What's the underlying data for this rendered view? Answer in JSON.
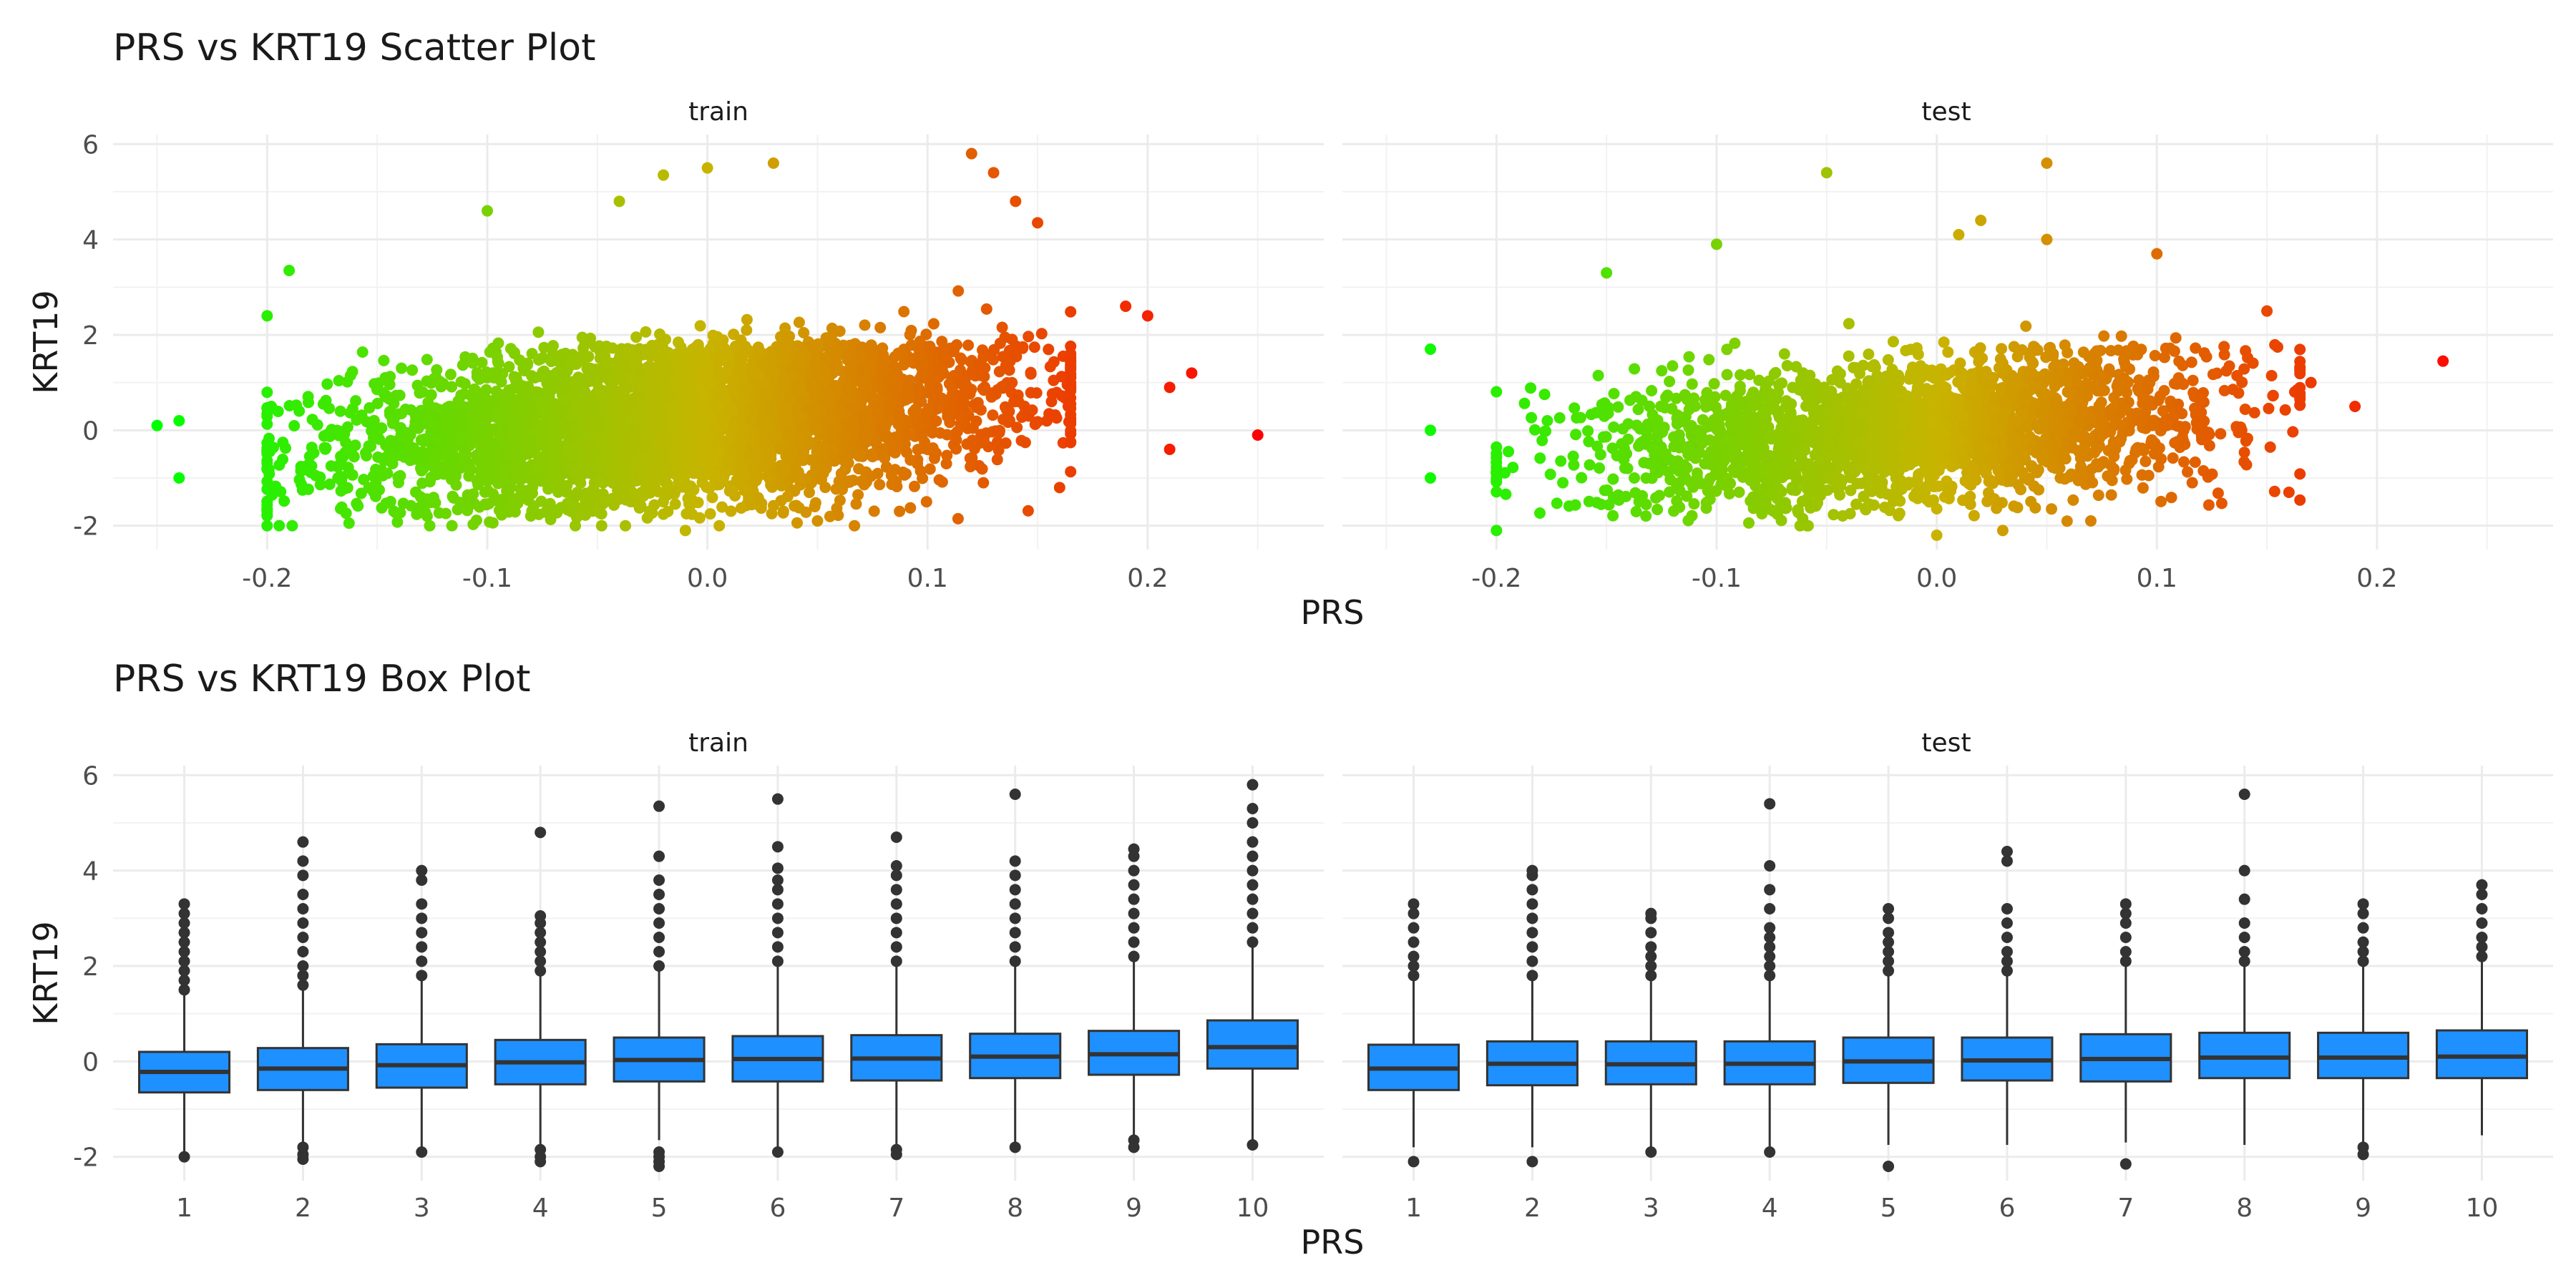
{
  "chart_data": [
    {
      "type": "scatter",
      "title": "PRS vs KRT19 Scatter Plot",
      "xlabel": "PRS",
      "ylabel": "KRT19",
      "facets": [
        "train",
        "test"
      ],
      "xlim": [
        -0.27,
        0.28
      ],
      "ylim": [
        -2.5,
        6.2
      ],
      "x_ticks": [
        -0.2,
        -0.1,
        0.0,
        0.1,
        0.2
      ],
      "x_tick_labels": [
        "-0.2",
        "-0.1",
        "0.0",
        "0.1",
        "0.2"
      ],
      "y_ticks": [
        -2,
        0,
        2,
        4,
        6
      ],
      "y_tick_labels": [
        "-2",
        "0",
        "2",
        "4",
        "6"
      ],
      "color_scale": {
        "low": "#00ff00",
        "mid": "#c8b400",
        "high": "#ff0000",
        "variable": "PRS"
      },
      "grid": true,
      "legend": "none",
      "cloud": {
        "train": {
          "n": 4200,
          "x_mean": -0.01,
          "x_sd": 0.075,
          "y_mean": 0.2,
          "y_sd": 0.85
        },
        "test": {
          "n": 2400,
          "x_mean": -0.01,
          "x_sd": 0.07,
          "y_mean": 0.0,
          "y_sd": 0.75
        }
      },
      "series": [
        {
          "facet": "train",
          "points": [
            [
              -0.25,
              0.1
            ],
            [
              -0.24,
              0.2
            ],
            [
              -0.2,
              2.4
            ],
            [
              -0.19,
              3.35
            ],
            [
              -0.1,
              4.6
            ],
            [
              -0.04,
              4.8
            ],
            [
              -0.02,
              5.35
            ],
            [
              0.0,
              5.5
            ],
            [
              0.03,
              5.6
            ],
            [
              0.12,
              5.8
            ],
            [
              0.13,
              5.4
            ],
            [
              0.14,
              4.8
            ],
            [
              0.15,
              4.35
            ],
            [
              0.19,
              2.6
            ],
            [
              0.2,
              2.4
            ],
            [
              0.21,
              0.9
            ],
            [
              0.22,
              1.2
            ],
            [
              0.21,
              -0.4
            ],
            [
              0.25,
              -0.1
            ],
            [
              0.16,
              -1.2
            ],
            [
              -0.01,
              -2.1
            ],
            [
              -0.06,
              -2.0
            ],
            [
              0.05,
              -1.9
            ],
            [
              -0.24,
              -1.0
            ]
          ]
        },
        {
          "facet": "test",
          "points": [
            [
              -0.23,
              1.7
            ],
            [
              -0.23,
              0.0
            ],
            [
              -0.23,
              -1.0
            ],
            [
              -0.2,
              -2.1
            ],
            [
              -0.15,
              3.3
            ],
            [
              -0.1,
              3.9
            ],
            [
              -0.05,
              5.4
            ],
            [
              0.01,
              4.1
            ],
            [
              0.02,
              4.4
            ],
            [
              0.05,
              5.6
            ],
            [
              0.05,
              4.0
            ],
            [
              0.1,
              3.7
            ],
            [
              0.15,
              2.5
            ],
            [
              0.19,
              0.5
            ],
            [
              0.17,
              1.0
            ],
            [
              0.23,
              1.45
            ],
            [
              0.16,
              -1.3
            ],
            [
              0.0,
              -2.2
            ],
            [
              0.03,
              -2.1
            ],
            [
              0.07,
              -1.9
            ]
          ]
        }
      ]
    },
    {
      "type": "box",
      "title": "PRS vs KRT19 Box Plot",
      "xlabel": "PRS",
      "ylabel": "KRT19",
      "facets": [
        "train",
        "test"
      ],
      "categories": [
        "1",
        "2",
        "3",
        "4",
        "5",
        "6",
        "7",
        "8",
        "9",
        "10"
      ],
      "ylim": [
        -2.5,
        6.2
      ],
      "y_ticks": [
        -2,
        0,
        2,
        4,
        6
      ],
      "y_tick_labels": [
        "-2",
        "0",
        "2",
        "4",
        "6"
      ],
      "box_color": "#1e90ff",
      "grid": true,
      "legend": "none",
      "series": [
        {
          "name": "train",
          "boxes": [
            {
              "q1": -0.65,
              "median": -0.22,
              "q3": 0.2,
              "whisker_low": -1.9,
              "whisker_high": 1.45,
              "outliers": [
                1.5,
                1.7,
                1.9,
                2.1,
                2.3,
                2.5,
                2.7,
                2.9,
                3.1,
                3.3,
                -2.0
              ]
            },
            {
              "q1": -0.6,
              "median": -0.15,
              "q3": 0.28,
              "whisker_low": -1.75,
              "whisker_high": 1.55,
              "outliers": [
                1.6,
                1.8,
                2.0,
                2.3,
                2.6,
                2.9,
                3.2,
                3.5,
                3.9,
                4.2,
                4.6,
                -1.8,
                -1.95,
                -2.05
              ]
            },
            {
              "q1": -0.55,
              "median": -0.08,
              "q3": 0.36,
              "whisker_low": -1.85,
              "whisker_high": 1.7,
              "outliers": [
                1.8,
                2.1,
                2.4,
                2.7,
                3.0,
                3.3,
                3.8,
                4.0,
                -1.9
              ]
            },
            {
              "q1": -0.48,
              "median": -0.02,
              "q3": 0.45,
              "whisker_low": -1.75,
              "whisker_high": 1.85,
              "outliers": [
                1.9,
                2.1,
                2.3,
                2.5,
                2.7,
                2.9,
                3.05,
                4.8,
                -1.85,
                -2.0,
                -2.1
              ]
            },
            {
              "q1": -0.42,
              "median": 0.03,
              "q3": 0.5,
              "whisker_low": -1.65,
              "whisker_high": 1.9,
              "outliers": [
                2.0,
                2.3,
                2.6,
                2.9,
                3.2,
                3.5,
                3.8,
                4.3,
                5.35,
                -1.9,
                -2.0,
                -2.1,
                -2.2
              ]
            },
            {
              "q1": -0.42,
              "median": 0.05,
              "q3": 0.53,
              "whisker_low": -1.8,
              "whisker_high": 2.0,
              "outliers": [
                2.1,
                2.4,
                2.7,
                3.0,
                3.3,
                3.6,
                3.8,
                4.05,
                4.5,
                5.5,
                -1.9
              ]
            },
            {
              "q1": -0.4,
              "median": 0.06,
              "q3": 0.55,
              "whisker_low": -1.8,
              "whisker_high": 2.0,
              "outliers": [
                2.1,
                2.4,
                2.7,
                3.0,
                3.3,
                3.6,
                3.9,
                4.1,
                4.7,
                -1.85,
                -1.95
              ]
            },
            {
              "q1": -0.35,
              "median": 0.1,
              "q3": 0.58,
              "whisker_low": -1.75,
              "whisker_high": 2.05,
              "outliers": [
                2.1,
                2.4,
                2.7,
                3.0,
                3.3,
                3.6,
                3.9,
                4.2,
                5.6,
                -1.8
              ]
            },
            {
              "q1": -0.28,
              "median": 0.15,
              "q3": 0.64,
              "whisker_low": -1.6,
              "whisker_high": 2.1,
              "outliers": [
                2.2,
                2.5,
                2.8,
                3.1,
                3.4,
                3.7,
                4.0,
                4.3,
                4.45,
                -1.65,
                -1.8
              ]
            },
            {
              "q1": -0.15,
              "median": 0.3,
              "q3": 0.86,
              "whisker_low": -1.7,
              "whisker_high": 2.4,
              "outliers": [
                2.5,
                2.8,
                3.1,
                3.4,
                3.7,
                4.0,
                4.3,
                4.6,
                5.0,
                5.3,
                5.8,
                -1.75
              ]
            }
          ]
        },
        {
          "name": "test",
          "boxes": [
            {
              "q1": -0.6,
              "median": -0.15,
              "q3": 0.35,
              "whisker_low": -1.8,
              "whisker_high": 1.7,
              "outliers": [
                1.8,
                2.0,
                2.2,
                2.5,
                2.8,
                3.1,
                3.3,
                -2.1
              ]
            },
            {
              "q1": -0.5,
              "median": -0.05,
              "q3": 0.42,
              "whisker_low": -1.8,
              "whisker_high": 1.7,
              "outliers": [
                1.8,
                2.1,
                2.4,
                2.7,
                3.0,
                3.3,
                3.6,
                3.9,
                4.0,
                -2.1
              ]
            },
            {
              "q1": -0.48,
              "median": -0.06,
              "q3": 0.42,
              "whisker_low": -1.8,
              "whisker_high": 1.75,
              "outliers": [
                1.8,
                2.0,
                2.2,
                2.4,
                2.7,
                3.0,
                3.1,
                -1.9
              ]
            },
            {
              "q1": -0.48,
              "median": -0.05,
              "q3": 0.42,
              "whisker_low": -1.8,
              "whisker_high": 1.75,
              "outliers": [
                1.8,
                2.0,
                2.2,
                2.4,
                2.6,
                2.8,
                3.2,
                3.6,
                4.1,
                5.4,
                -1.9
              ]
            },
            {
              "q1": -0.45,
              "median": 0.0,
              "q3": 0.5,
              "whisker_low": -1.75,
              "whisker_high": 1.85,
              "outliers": [
                1.9,
                2.1,
                2.3,
                2.5,
                2.7,
                3.0,
                3.2,
                -2.2
              ]
            },
            {
              "q1": -0.4,
              "median": 0.02,
              "q3": 0.5,
              "whisker_low": -1.75,
              "whisker_high": 1.85,
              "outliers": [
                1.9,
                2.1,
                2.3,
                2.6,
                2.9,
                3.2,
                4.2,
                4.4
              ]
            },
            {
              "q1": -0.42,
              "median": 0.05,
              "q3": 0.57,
              "whisker_low": -1.7,
              "whisker_high": 2.0,
              "outliers": [
                2.1,
                2.3,
                2.6,
                2.9,
                3.1,
                3.3,
                -2.15
              ]
            },
            {
              "q1": -0.35,
              "median": 0.08,
              "q3": 0.6,
              "whisker_low": -1.75,
              "whisker_high": 2.0,
              "outliers": [
                2.1,
                2.3,
                2.6,
                2.9,
                3.4,
                4.0,
                5.6
              ]
            },
            {
              "q1": -0.35,
              "median": 0.08,
              "q3": 0.6,
              "whisker_low": -1.7,
              "whisker_high": 2.0,
              "outliers": [
                2.1,
                2.3,
                2.5,
                2.8,
                3.1,
                3.3,
                -1.8,
                -1.95
              ]
            },
            {
              "q1": -0.35,
              "median": 0.1,
              "q3": 0.65,
              "whisker_low": -1.55,
              "whisker_high": 2.15,
              "outliers": [
                2.2,
                2.4,
                2.6,
                2.9,
                3.2,
                3.5,
                3.7
              ]
            }
          ]
        }
      ]
    }
  ]
}
